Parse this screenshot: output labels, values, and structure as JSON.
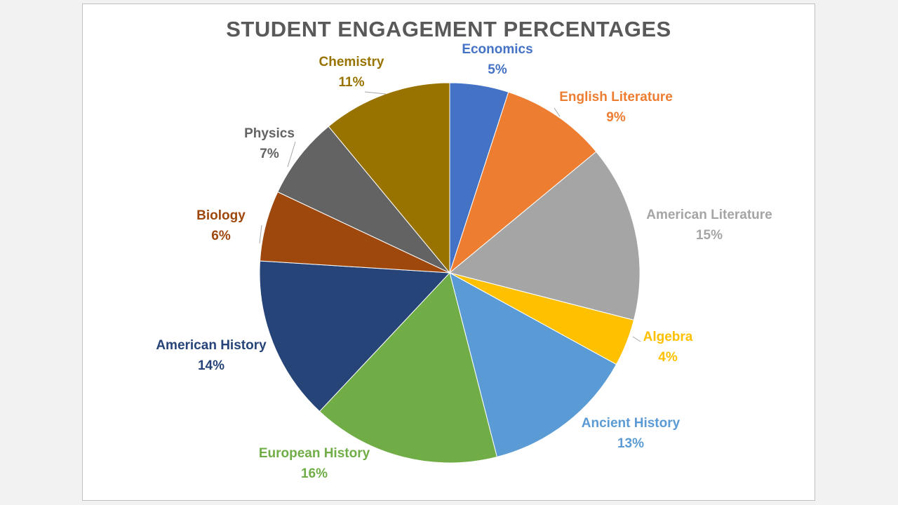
{
  "chart_data": {
    "type": "pie",
    "title": "STUDENT ENGAGEMENT PERCENTAGES",
    "slices": [
      {
        "name": "Economics",
        "value": 5,
        "label": "5%",
        "color": "#4472c4"
      },
      {
        "name": "English Literature",
        "value": 9,
        "label": "9%",
        "color": "#ed7d31"
      },
      {
        "name": "American Literature",
        "value": 15,
        "label": "15%",
        "color": "#a5a5a5"
      },
      {
        "name": "Algebra",
        "value": 4,
        "label": "4%",
        "color": "#ffc000"
      },
      {
        "name": "Ancient History",
        "value": 13,
        "label": "13%",
        "color": "#5b9bd5"
      },
      {
        "name": "European History",
        "value": 16,
        "label": "16%",
        "color": "#70ad47"
      },
      {
        "name": "American History",
        "value": 14,
        "label": "14%",
        "color": "#264478"
      },
      {
        "name": "Biology",
        "value": 6,
        "label": "6%",
        "color": "#9e480e"
      },
      {
        "name": "Physics",
        "value": 7,
        "label": "7%",
        "color": "#636363"
      },
      {
        "name": "Chemistry",
        "value": 11,
        "label": "11%",
        "color": "#997300"
      }
    ],
    "legend": "none",
    "start_angle": "12 o'clock, clockwise"
  }
}
